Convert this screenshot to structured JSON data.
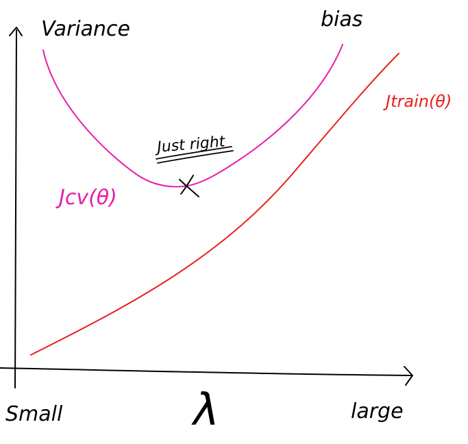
{
  "labels": {
    "y_top": "Variance",
    "bias": "bias",
    "j_train": "Jtrain(θ)",
    "j_cv": "Jcv(θ)",
    "just_right": "Just right",
    "x_left": "Small",
    "x_right": "large",
    "x_symbol": "λ",
    "min_marker": "X"
  },
  "colors": {
    "axes": "#000000",
    "j_cv_curve": "#e61ea8",
    "j_train_curve": "#e8201c",
    "ink": "#000000"
  }
}
